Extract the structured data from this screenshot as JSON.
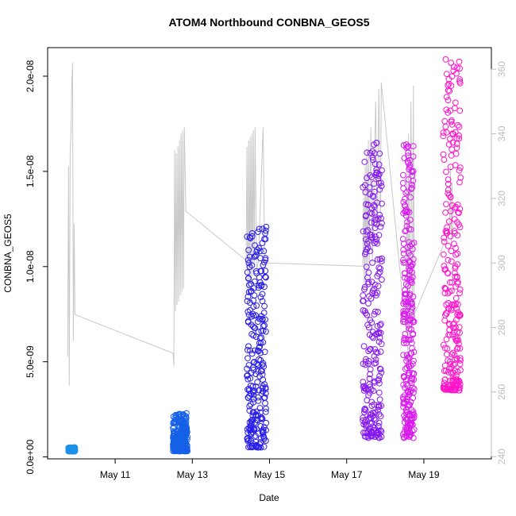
{
  "chart_data": {
    "type": "scatter",
    "title": "ATOM4 Northbound CONBNA_GEOS5",
    "xlabel": "Date",
    "ylabel": "CONBNA_GEOS5",
    "x_ticks": [
      "May 11",
      "May 13",
      "May 15",
      "May 17",
      "May 19"
    ],
    "y_ticks": [
      "0.0e+00",
      "5.0e-09",
      "1.0e-08",
      "1.5e-08",
      "2.0e-08"
    ],
    "y2_ticks": [
      "240",
      "260",
      "280",
      "300",
      "320",
      "340",
      "360"
    ],
    "xlim": [
      "2018-05-09T06:00",
      "2018-05-20T18:00"
    ],
    "ylim": [
      -1e-10,
      2.15e-08
    ],
    "y2lim": [
      239.3,
      366.7
    ],
    "grid": false,
    "series": [
      {
        "color": "#1E90E8",
        "x_start": "2018-05-09T19:00",
        "x_end": "2018-05-09T23:00",
        "y_min": 3e-10,
        "y_max": 5e-10
      },
      {
        "color": "#1560E6",
        "x_start": "2018-05-12T12:00",
        "x_end": "2018-05-12T21:00",
        "y_min": 3e-10,
        "y_max": 2.3e-09
      },
      {
        "color": "#2A1EEA",
        "x_start": "2018-05-14T10:00",
        "x_end": "2018-05-14T22:00",
        "y_min": 5e-10,
        "y_max": 1.22e-08
      },
      {
        "color": "#8418F0",
        "x_start": "2018-05-17T10:00",
        "x_end": "2018-05-17T22:00",
        "y_min": 1e-09,
        "y_max": 1.7e-08
      },
      {
        "color": "#D81CEC",
        "x_start": "2018-05-18T11:00",
        "x_end": "2018-05-18T18:00",
        "y_min": 1e-09,
        "y_max": 1.65e-08
      },
      {
        "color": "#FF14C8",
        "x_start": "2018-05-19T12:00",
        "x_end": "2018-05-19T23:00",
        "y_min": 3.5e-09,
        "y_max": 2.1e-08
      }
    ],
    "secondary_line": {
      "color": "#c8c8c8",
      "axis": "right",
      "points": [
        [
          "2018-05-09T18:30",
          271
        ],
        [
          "2018-05-09T19:00",
          330
        ],
        [
          "2018-05-09T19:30",
          262
        ],
        [
          "2018-05-09T20:00",
          335
        ],
        [
          "2018-05-09T20:30",
          340
        ],
        [
          "2018-05-09T21:00",
          355
        ],
        [
          "2018-05-09T21:30",
          362
        ],
        [
          "2018-05-09T22:00",
          276
        ],
        [
          "2018-05-09T22:30",
          312
        ],
        [
          "2018-05-09T23:00",
          284
        ],
        [
          "2018-05-12T12:00",
          272
        ],
        [
          "2018-05-12T12:30",
          268
        ],
        [
          "2018-05-12T13:00",
          335
        ],
        [
          "2018-05-12T13:30",
          285
        ],
        [
          "2018-05-12T14:00",
          334
        ],
        [
          "2018-05-12T14:30",
          287
        ],
        [
          "2018-05-12T15:00",
          336
        ],
        [
          "2018-05-12T15:30",
          288
        ],
        [
          "2018-05-12T16:00",
          338
        ],
        [
          "2018-05-12T16:30",
          290
        ],
        [
          "2018-05-12T17:00",
          340
        ],
        [
          "2018-05-12T17:30",
          291
        ],
        [
          "2018-05-12T18:00",
          341
        ],
        [
          "2018-05-12T18:30",
          292
        ],
        [
          "2018-05-12T19:00",
          342
        ],
        [
          "2018-05-12T20:00",
          316
        ],
        [
          "2018-05-14T09:00",
          301
        ],
        [
          "2018-05-14T09:30",
          300
        ],
        [
          "2018-05-14T10:00",
          336
        ],
        [
          "2018-05-14T10:30",
          290
        ],
        [
          "2018-05-14T11:00",
          338
        ],
        [
          "2018-05-14T11:30",
          292
        ],
        [
          "2018-05-14T12:00",
          339
        ],
        [
          "2018-05-14T12:30",
          294
        ],
        [
          "2018-05-14T13:00",
          340
        ],
        [
          "2018-05-14T13:30",
          296
        ],
        [
          "2018-05-14T14:00",
          341
        ],
        [
          "2018-05-14T14:30",
          300
        ],
        [
          "2018-05-14T15:00",
          342
        ],
        [
          "2018-05-14T16:00",
          298
        ],
        [
          "2018-05-14T17:00",
          300
        ],
        [
          "2018-05-14T20:00",
          342
        ],
        [
          "2018-05-14T21:00",
          300
        ],
        [
          "2018-05-17T10:00",
          299
        ],
        [
          "2018-05-17T10:30",
          320
        ],
        [
          "2018-05-17T11:00",
          292
        ],
        [
          "2018-05-17T11:30",
          330
        ],
        [
          "2018-05-17T12:00",
          294
        ],
        [
          "2018-05-17T12:30",
          335
        ],
        [
          "2018-05-17T13:00",
          296
        ],
        [
          "2018-05-17T13:30",
          338
        ],
        [
          "2018-05-17T14:00",
          298
        ],
        [
          "2018-05-17T15:00",
          342
        ],
        [
          "2018-05-17T16:00",
          300
        ],
        [
          "2018-05-17T18:00",
          350
        ],
        [
          "2018-05-17T19:00",
          310
        ],
        [
          "2018-05-17T20:00",
          354
        ],
        [
          "2018-05-17T21:00",
          312
        ],
        [
          "2018-05-17T21:30",
          356
        ],
        [
          "2018-05-18T13:00",
          278
        ],
        [
          "2018-05-18T13:30",
          330
        ],
        [
          "2018-05-18T14:00",
          270
        ],
        [
          "2018-05-18T14:30",
          340
        ],
        [
          "2018-05-18T15:00",
          276
        ],
        [
          "2018-05-18T16:00",
          350
        ],
        [
          "2018-05-18T17:00",
          280
        ],
        [
          "2018-05-18T17:30",
          355
        ],
        [
          "2018-05-18T18:00",
          284
        ],
        [
          "2018-05-19T16:00",
          310
        ],
        [
          "2018-05-19T16:30",
          330
        ],
        [
          "2018-05-19T17:00",
          305
        ],
        [
          "2018-05-19T17:30",
          325
        ],
        [
          "2018-05-19T18:00",
          308
        ]
      ]
    }
  }
}
